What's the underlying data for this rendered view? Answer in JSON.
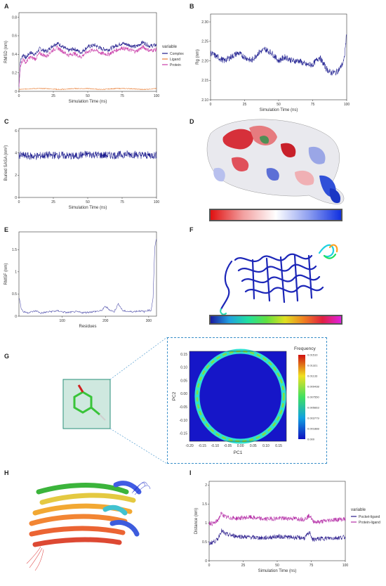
{
  "panels": [
    "A",
    "B",
    "C",
    "D",
    "E",
    "F",
    "G",
    "H",
    "I"
  ],
  "colors": {
    "complex": "#1f1a8c",
    "ligand": "#e8803a",
    "protein": "#c93ca8",
    "pocket": "#2a1c8c",
    "protein_ligand": "#b52ea7",
    "navy": "#1c1c8f"
  },
  "chart_data": [
    {
      "id": "A",
      "type": "line",
      "title": "",
      "xlabel": "Simulation Time (ns)",
      "ylabel": "RMSD (nm)",
      "xlim": [
        0,
        100
      ],
      "ylim": [
        0,
        0.85
      ],
      "xticks": [
        0,
        25,
        50,
        75,
        100
      ],
      "yticks": [
        0.0,
        0.2,
        0.4,
        0.6,
        0.8
      ],
      "legend_title": "variable",
      "legend_position": "right",
      "series": [
        {
          "name": "Complex",
          "color": "#1f1a8c",
          "x": [
            0,
            1,
            3,
            5,
            8,
            12,
            15,
            20,
            25,
            28,
            32,
            36,
            40,
            45,
            50,
            55,
            60,
            65,
            70,
            75,
            80,
            85,
            90,
            95,
            100
          ],
          "y": [
            0.05,
            0.32,
            0.4,
            0.36,
            0.42,
            0.4,
            0.46,
            0.43,
            0.5,
            0.52,
            0.48,
            0.44,
            0.46,
            0.42,
            0.48,
            0.5,
            0.46,
            0.45,
            0.49,
            0.52,
            0.5,
            0.48,
            0.53,
            0.49,
            0.5
          ]
        },
        {
          "name": "Ligand",
          "color": "#e8803a",
          "x": [
            0,
            10,
            20,
            30,
            40,
            50,
            60,
            70,
            80,
            90,
            100
          ],
          "y": [
            0.02,
            0.03,
            0.03,
            0.02,
            0.03,
            0.03,
            0.02,
            0.03,
            0.03,
            0.02,
            0.03
          ]
        },
        {
          "name": "Protein",
          "color": "#c93ca8",
          "x": [
            0,
            1,
            3,
            5,
            8,
            12,
            15,
            20,
            25,
            28,
            32,
            36,
            40,
            45,
            50,
            55,
            60,
            65,
            70,
            75,
            80,
            85,
            90,
            95,
            100
          ],
          "y": [
            0.04,
            0.28,
            0.35,
            0.31,
            0.37,
            0.35,
            0.41,
            0.38,
            0.45,
            0.47,
            0.43,
            0.39,
            0.41,
            0.37,
            0.43,
            0.45,
            0.41,
            0.4,
            0.44,
            0.47,
            0.45,
            0.43,
            0.48,
            0.44,
            0.45
          ]
        }
      ]
    },
    {
      "id": "B",
      "type": "line",
      "title": "",
      "xlabel": "Simulation Time (ns)",
      "ylabel": "Rg (nm)",
      "xlim": [
        0,
        100
      ],
      "ylim": [
        2.1,
        2.32
      ],
      "xticks": [
        0,
        25,
        50,
        75,
        100
      ],
      "yticks": [
        2.1,
        2.15,
        2.2,
        2.25,
        2.3
      ],
      "series": [
        {
          "name": "",
          "color": "#1c1c8f",
          "x": [
            0,
            5,
            10,
            15,
            20,
            25,
            30,
            35,
            40,
            45,
            50,
            55,
            60,
            65,
            70,
            75,
            80,
            85,
            88,
            92,
            95,
            98,
            100
          ],
          "y": [
            2.22,
            2.21,
            2.2,
            2.21,
            2.22,
            2.21,
            2.2,
            2.22,
            2.23,
            2.22,
            2.2,
            2.21,
            2.2,
            2.2,
            2.19,
            2.19,
            2.21,
            2.18,
            2.17,
            2.17,
            2.18,
            2.2,
            2.27
          ]
        }
      ]
    },
    {
      "id": "C",
      "type": "line",
      "title": "",
      "xlabel": "Simulation Time (ns)",
      "ylabel": "Buried SASA (nm²)",
      "xlim": [
        0,
        100
      ],
      "ylim": [
        0,
        6.2
      ],
      "xticks": [
        0,
        25,
        50,
        75,
        100
      ],
      "yticks": [
        0,
        2,
        4,
        6
      ],
      "series": [
        {
          "name": "",
          "color": "#1c1c8f",
          "x": [
            0,
            10,
            20,
            30,
            40,
            50,
            60,
            70,
            80,
            90,
            100
          ],
          "y": [
            3.8,
            3.7,
            3.8,
            3.8,
            3.7,
            3.9,
            3.8,
            3.8,
            3.9,
            3.8,
            3.8
          ]
        }
      ]
    },
    {
      "id": "E",
      "type": "line",
      "title": "",
      "xlabel": "Residues",
      "ylabel": "RMSF (nm)",
      "xlim": [
        0,
        318
      ],
      "ylim": [
        0,
        1.9
      ],
      "xticks": [
        100,
        200,
        300
      ],
      "yticks": [
        0.0,
        0.5,
        1.0,
        1.5
      ],
      "series": [
        {
          "name": "",
          "color": "#4a4aa8",
          "x": [
            1,
            5,
            10,
            20,
            40,
            50,
            70,
            90,
            110,
            130,
            150,
            170,
            190,
            200,
            210,
            220,
            230,
            240,
            260,
            280,
            290,
            300,
            305,
            310,
            314,
            318
          ],
          "y": [
            0.42,
            0.18,
            0.1,
            0.08,
            0.12,
            0.07,
            0.1,
            0.12,
            0.08,
            0.1,
            0.08,
            0.1,
            0.12,
            0.22,
            0.14,
            0.1,
            0.28,
            0.12,
            0.1,
            0.12,
            0.1,
            0.14,
            0.12,
            0.4,
            1.55,
            1.75
          ]
        }
      ]
    },
    {
      "id": "G",
      "type": "heatmap",
      "title": "",
      "xlabel": "PC1",
      "ylabel": "PC2",
      "xlim": [
        -0.2,
        0.18
      ],
      "ylim": [
        -0.18,
        0.16
      ],
      "xticks": [
        -0.2,
        -0.15,
        -0.1,
        -0.05,
        0.0,
        0.05,
        0.1,
        0.15
      ],
      "yticks": [
        -0.15,
        -0.1,
        -0.05,
        0.0,
        0.05,
        0.1,
        0.15
      ],
      "colorbar_title": "Frequency",
      "colorbar_ticks": [
        "0.000",
        "0.001888",
        "0.003779",
        "0.005663",
        "0.007550",
        "0.009438",
        "0.01133",
        "0.01321",
        "0.01510"
      ]
    },
    {
      "id": "I",
      "type": "line",
      "title": "",
      "xlabel": "Simulation Time (ns)",
      "ylabel": "Distance (nm)",
      "xlim": [
        0,
        100
      ],
      "ylim": [
        0,
        2.1
      ],
      "xticks": [
        0,
        25,
        50,
        75,
        100
      ],
      "yticks": [
        0.0,
        0.5,
        1.0,
        1.5,
        2.0
      ],
      "legend_title": "variable",
      "legend_position": "right",
      "series": [
        {
          "name": "Pocket-ligand",
          "color": "#2a1c8c",
          "x": [
            0,
            3,
            6,
            9,
            12,
            20,
            30,
            40,
            50,
            60,
            70,
            74,
            76,
            80,
            90,
            100
          ],
          "y": [
            0.45,
            0.5,
            0.55,
            0.8,
            0.7,
            0.65,
            0.62,
            0.6,
            0.64,
            0.62,
            0.6,
            0.75,
            0.55,
            0.58,
            0.6,
            0.62
          ]
        },
        {
          "name": "Protein-ligand",
          "color": "#b52ea7",
          "x": [
            0,
            3,
            6,
            9,
            12,
            20,
            30,
            40,
            50,
            60,
            70,
            74,
            76,
            80,
            90,
            100
          ],
          "y": [
            1.0,
            0.98,
            1.05,
            1.25,
            1.15,
            1.12,
            1.15,
            1.1,
            1.12,
            1.12,
            1.1,
            1.2,
            1.05,
            1.02,
            1.08,
            1.1
          ]
        }
      ]
    }
  ]
}
